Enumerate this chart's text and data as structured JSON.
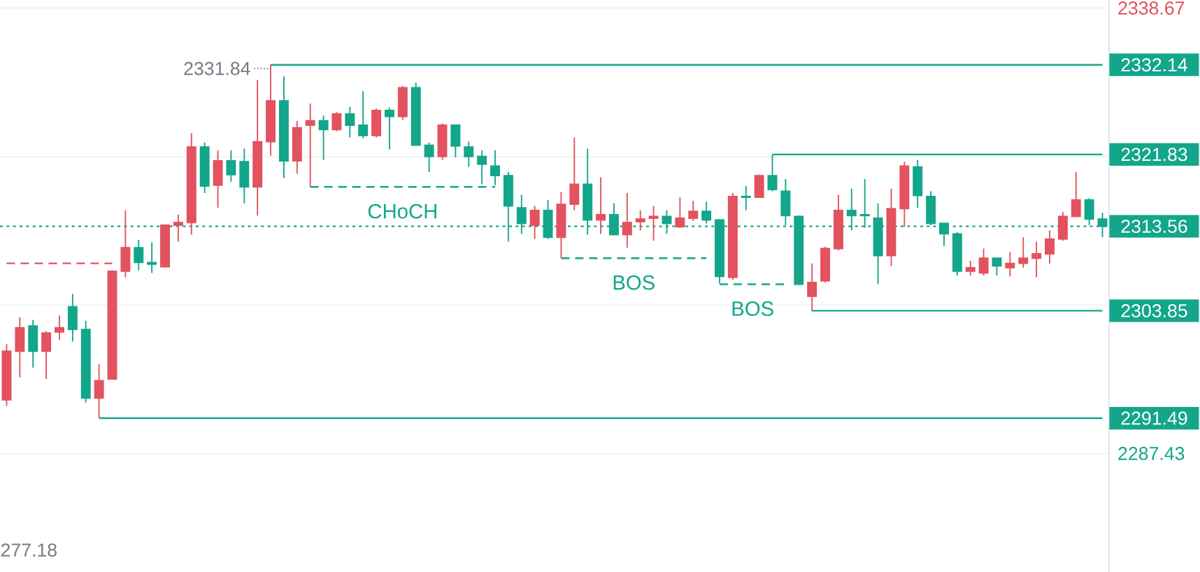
{
  "chart_data": {
    "type": "candlestick",
    "categories": [
      null,
      null,
      null,
      null,
      null,
      null,
      null,
      null,
      null,
      null,
      null,
      null,
      null,
      null,
      null,
      null,
      null,
      null,
      null,
      null,
      null,
      null,
      null,
      null,
      null,
      null,
      null,
      null,
      null,
      null,
      null,
      null,
      null,
      null,
      null,
      null,
      null,
      null,
      null,
      null,
      null,
      null,
      null,
      null,
      null,
      null,
      null,
      null,
      null,
      null,
      null,
      null,
      null,
      null,
      null,
      null,
      null,
      null,
      null,
      null,
      null,
      null,
      null,
      null,
      null,
      null,
      null,
      null,
      null,
      null,
      null,
      null,
      null,
      null,
      null,
      null,
      null,
      null,
      null,
      null,
      null,
      null,
      null,
      null
    ],
    "ohlc": [
      [
        2293.6,
        2300.0,
        2292.9,
        2299.2
      ],
      [
        2299.2,
        2303.1,
        2296.2,
        2301.9
      ],
      [
        2302.1,
        2302.8,
        2297.3,
        2299.2
      ],
      [
        2299.2,
        2301.5,
        2296.0,
        2301.3
      ],
      [
        2301.4,
        2303.3,
        2300.5,
        2301.9
      ],
      [
        2304.3,
        2305.8,
        2300.3,
        2301.7
      ],
      [
        2301.7,
        2302.7,
        2293.3,
        2293.8
      ],
      [
        2293.8,
        2297.7,
        2291.49,
        2295.8
      ],
      [
        2296.0,
        2308.5,
        2296.0,
        2308.4
      ],
      [
        2308.4,
        2315.4,
        2307.7,
        2311.1
      ],
      [
        2311.1,
        2312.0,
        2308.5,
        2309.4
      ],
      [
        2309.4,
        2311.7,
        2308.2,
        2309.2
      ],
      [
        2308.9,
        2313.8,
        2308.8,
        2313.7
      ],
      [
        2313.7,
        2314.9,
        2311.8,
        2314.0
      ],
      [
        2314.0,
        2324.3,
        2312.6,
        2322.7
      ],
      [
        2322.7,
        2323.2,
        2317.4,
        2318.2
      ],
      [
        2318.3,
        2322.3,
        2315.7,
        2321.1
      ],
      [
        2321.1,
        2322.3,
        2318.7,
        2319.5
      ],
      [
        2321.0,
        2322.5,
        2316.2,
        2318.1
      ],
      [
        2318.1,
        2330.4,
        2314.8,
        2323.3
      ],
      [
        2323.3,
        2332.14,
        2321.7,
        2328.0
      ],
      [
        2328.0,
        2330.8,
        2319.1,
        2321.1
      ],
      [
        2321.1,
        2325.7,
        2319.6,
        2324.9
      ],
      [
        2325.2,
        2327.7,
        2318.1,
        2325.7
      ],
      [
        2325.7,
        2326.3,
        2321.2,
        2324.7
      ],
      [
        2324.7,
        2326.7,
        2324.5,
        2326.5
      ],
      [
        2326.5,
        2327.3,
        2323.8,
        2325.2
      ],
      [
        2325.2,
        2329.1,
        2323.7,
        2324.0
      ],
      [
        2324.0,
        2327.1,
        2323.8,
        2326.9
      ],
      [
        2326.9,
        2327.2,
        2322.4,
        2326.2
      ],
      [
        2326.2,
        2329.7,
        2325.8,
        2329.5
      ],
      [
        2329.5,
        2330.1,
        2322.8,
        2322.9
      ],
      [
        2322.9,
        2323.2,
        2319.8,
        2321.6
      ],
      [
        2321.6,
        2325.4,
        2321.2,
        2325.2
      ],
      [
        2325.2,
        2325.3,
        2321.5,
        2322.8
      ],
      [
        2322.7,
        2323.3,
        2320.4,
        2321.6
      ],
      [
        2321.6,
        2322.3,
        2318.4,
        2320.7
      ],
      [
        2320.5,
        2322.3,
        2318.3,
        2319.4
      ],
      [
        2319.4,
        2319.8,
        2311.8,
        2315.9
      ],
      [
        2315.7,
        2317.2,
        2312.7,
        2313.9
      ],
      [
        2313.7,
        2315.9,
        2312.1,
        2315.4
      ],
      [
        2315.4,
        2316.6,
        2312.1,
        2312.3
      ],
      [
        2312.3,
        2317.5,
        2309.9,
        2316.1
      ],
      [
        2316.1,
        2323.8,
        2315.4,
        2318.4
      ],
      [
        2318.4,
        2322.5,
        2312.6,
        2314.3
      ],
      [
        2314.3,
        2319.2,
        2312.7,
        2314.9
      ],
      [
        2314.9,
        2316.2,
        2312.6,
        2312.6
      ],
      [
        2312.6,
        2317.4,
        2311.1,
        2314.0
      ],
      [
        2314.1,
        2315.4,
        2313.1,
        2314.4
      ],
      [
        2314.5,
        2315.9,
        2311.9,
        2314.7
      ],
      [
        2314.7,
        2315.4,
        2312.7,
        2313.9
      ],
      [
        2313.5,
        2316.9,
        2313.4,
        2314.5
      ],
      [
        2314.5,
        2316.5,
        2314.2,
        2315.3
      ],
      [
        2315.3,
        2316.4,
        2313.9,
        2314.3
      ],
      [
        2314.3,
        2314.4,
        2307.0,
        2307.8
      ],
      [
        2307.7,
        2317.4,
        2307.4,
        2317.0
      ],
      [
        2317.0,
        2318.2,
        2315.4,
        2316.9
      ],
      [
        2316.9,
        2319.5,
        2316.9,
        2319.4
      ],
      [
        2319.4,
        2321.83,
        2317.6,
        2317.8
      ],
      [
        2317.6,
        2319.0,
        2313.7,
        2314.8
      ],
      [
        2314.7,
        2314.8,
        2306.8,
        2306.9
      ],
      [
        2305.5,
        2309.3,
        2303.85,
        2307.1
      ],
      [
        2307.3,
        2311.2,
        2307.1,
        2311.0
      ],
      [
        2311.0,
        2317.2,
        2310.8,
        2315.4
      ],
      [
        2315.4,
        2317.9,
        2313.1,
        2314.8
      ],
      [
        2314.9,
        2319.0,
        2313.4,
        2314.8
      ],
      [
        2314.5,
        2316.2,
        2306.9,
        2310.2
      ],
      [
        2310.2,
        2317.9,
        2309.0,
        2315.6
      ],
      [
        2315.6,
        2321.0,
        2313.5,
        2320.5
      ],
      [
        2320.4,
        2321.2,
        2315.7,
        2317.1
      ],
      [
        2317.0,
        2317.6,
        2313.7,
        2313.9
      ],
      [
        2313.9,
        2313.9,
        2311.3,
        2312.7
      ],
      [
        2312.7,
        2312.9,
        2307.9,
        2308.4
      ],
      [
        2308.4,
        2309.6,
        2307.9,
        2308.8
      ],
      [
        2308.2,
        2311.0,
        2307.9,
        2309.9
      ],
      [
        2309.9,
        2309.9,
        2307.9,
        2309.0
      ],
      [
        2308.8,
        2310.6,
        2307.8,
        2309.3
      ],
      [
        2309.3,
        2312.3,
        2308.8,
        2309.9
      ],
      [
        2309.9,
        2311.8,
        2307.7,
        2310.4
      ],
      [
        2310.4,
        2313.1,
        2309.3,
        2312.1
      ],
      [
        2312.1,
        2315.2,
        2311.9,
        2314.7
      ],
      [
        2314.7,
        2319.8,
        2314.7,
        2316.6
      ],
      [
        2316.6,
        2316.8,
        2313.7,
        2314.4
      ],
      [
        2314.4,
        2315.1,
        2312.3,
        2313.56
      ]
    ],
    "colors": [
      "#e2525f",
      "#e2525f",
      "#13a68b",
      "#e2525f",
      "#e2525f",
      "#13a68b",
      "#13a68b",
      "#e2525f",
      "#e2525f",
      "#e2525f",
      "#13a68b",
      "#13a68b",
      "#e2525f",
      "#e2525f",
      "#e2525f",
      "#13a68b",
      "#e2525f",
      "#13a68b",
      "#13a68b",
      "#e2525f",
      "#e2525f",
      "#13a68b",
      "#e2525f",
      "#e2525f",
      "#13a68b",
      "#e2525f",
      "#13a68b",
      "#13a68b",
      "#e2525f",
      "#13a68b",
      "#e2525f",
      "#13a68b",
      "#13a68b",
      "#e2525f",
      "#13a68b",
      "#13a68b",
      "#13a68b",
      "#13a68b",
      "#13a68b",
      "#13a68b",
      "#e2525f",
      "#13a68b",
      "#e2525f",
      "#e2525f",
      "#13a68b",
      "#e2525f",
      "#13a68b",
      "#e2525f",
      "#e2525f",
      "#e2525f",
      "#13a68b",
      "#e2525f",
      "#e2525f",
      "#13a68b",
      "#13a68b",
      "#e2525f",
      "#13a68b",
      "#e2525f",
      "#13a68b",
      "#13a68b",
      "#13a68b",
      "#e2525f",
      "#e2525f",
      "#e2525f",
      "#13a68b",
      "#13a68b",
      "#13a68b",
      "#e2525f",
      "#e2525f",
      "#13a68b",
      "#13a68b",
      "#13a68b",
      "#13a68b",
      "#e2525f",
      "#e2525f",
      "#13a68b",
      "#e2525f",
      "#e2525f",
      "#e2525f",
      "#e2525f",
      "#e2525f",
      "#e2525f",
      "#13a68b",
      "#13a68b"
    ],
    "series": [
      {
        "type": "line",
        "name": "2332.14",
        "color": "#13a68b",
        "values": [
          null,
          null,
          null,
          null,
          null,
          null,
          null,
          null,
          null,
          null,
          null,
          null,
          null,
          null,
          null,
          null,
          null,
          null,
          null,
          null,
          2332.14,
          2332.14,
          2332.14,
          2332.14,
          2332.14,
          2332.14,
          2332.14,
          2332.14,
          2332.14,
          2332.14,
          2332.14,
          2332.14,
          2332.14,
          2332.14,
          2332.14,
          2332.14,
          2332.14,
          2332.14,
          2332.14,
          2332.14,
          2332.14,
          2332.14,
          2332.14,
          2332.14,
          2332.14,
          2332.14,
          2332.14,
          2332.14,
          2332.14,
          2332.14,
          2332.14,
          2332.14,
          2332.14,
          2332.14,
          2332.14,
          2332.14,
          2332.14,
          2332.14,
          2332.14,
          2332.14,
          2332.14,
          2332.14,
          2332.14,
          2332.14,
          2332.14,
          2332.14,
          2332.14,
          2332.14,
          2332.14,
          2332.14,
          2332.14,
          2332.14,
          2332.14,
          2332.14,
          2332.14,
          2332.14,
          2332.14,
          2332.14,
          2332.14,
          2332.14,
          2332.14,
          2332.14,
          2332.14,
          2332.14
        ]
      },
      {
        "type": "line",
        "name": "2321.83",
        "color": "#13a68b",
        "values": [
          null,
          null,
          null,
          null,
          null,
          null,
          null,
          null,
          null,
          null,
          null,
          null,
          null,
          null,
          null,
          null,
          null,
          null,
          null,
          null,
          null,
          null,
          null,
          null,
          null,
          null,
          null,
          null,
          null,
          null,
          null,
          null,
          null,
          null,
          null,
          null,
          null,
          null,
          null,
          null,
          null,
          null,
          null,
          null,
          null,
          null,
          null,
          null,
          null,
          null,
          null,
          null,
          null,
          null,
          null,
          null,
          null,
          null,
          2321.83,
          2321.83,
          2321.83,
          2321.83,
          2321.83,
          2321.83,
          2321.83,
          2321.83,
          2321.83,
          2321.83,
          2321.83,
          2321.83,
          2321.83,
          2321.83,
          2321.83,
          2321.83,
          2321.83,
          2321.83,
          2321.83,
          2321.83,
          2321.83,
          2321.83,
          2321.83,
          2321.83,
          2321.83,
          2321.83
        ]
      },
      {
        "type": "line",
        "name": "2303.85",
        "color": "#13a68b",
        "values": [
          null,
          null,
          null,
          null,
          null,
          null,
          null,
          null,
          null,
          null,
          null,
          null,
          null,
          null,
          null,
          null,
          null,
          null,
          null,
          null,
          null,
          null,
          null,
          null,
          null,
          null,
          null,
          null,
          null,
          null,
          null,
          null,
          null,
          null,
          null,
          null,
          null,
          null,
          null,
          null,
          null,
          null,
          null,
          null,
          null,
          null,
          null,
          null,
          null,
          null,
          null,
          null,
          null,
          null,
          null,
          null,
          null,
          null,
          null,
          null,
          null,
          2303.85,
          2303.85,
          2303.85,
          2303.85,
          2303.85,
          2303.85,
          2303.85,
          2303.85,
          2303.85,
          2303.85,
          2303.85,
          2303.85,
          2303.85,
          2303.85,
          2303.85,
          2303.85,
          2303.85,
          2303.85,
          2303.85,
          2303.85,
          2303.85,
          2303.85,
          2303.85
        ]
      },
      {
        "type": "line",
        "name": "2291.49",
        "color": "#13a68b",
        "values": [
          null,
          null,
          null,
          null,
          null,
          null,
          null,
          2291.49,
          2291.49,
          2291.49,
          2291.49,
          2291.49,
          2291.49,
          2291.49,
          2291.49,
          2291.49,
          2291.49,
          2291.49,
          2291.49,
          2291.49,
          2291.49,
          2291.49,
          2291.49,
          2291.49,
          2291.49,
          2291.49,
          2291.49,
          2291.49,
          2291.49,
          2291.49,
          2291.49,
          2291.49,
          2291.49,
          2291.49,
          2291.49,
          2291.49,
          2291.49,
          2291.49,
          2291.49,
          2291.49,
          2291.49,
          2291.49,
          2291.49,
          2291.49,
          2291.49,
          2291.49,
          2291.49,
          2291.49,
          2291.49,
          2291.49,
          2291.49,
          2291.49,
          2291.49,
          2291.49,
          2291.49,
          2291.49,
          2291.49,
          2291.49,
          2291.49,
          2291.49,
          2291.49,
          2291.49,
          2291.49,
          2291.49,
          2291.49,
          2291.49,
          2291.49,
          2291.49,
          2291.49,
          2291.49,
          2291.49,
          2291.49,
          2291.49,
          2291.49,
          2291.49,
          2291.49,
          2291.49,
          2291.49,
          2291.49,
          2291.49,
          2291.49,
          2291.49,
          2291.49,
          2291.49
        ]
      },
      {
        "type": "line",
        "color": "#e2525f",
        "line_style": "dashed",
        "values": [
          2309.3,
          2309.3,
          2309.3,
          2309.3,
          2309.3,
          2309.3,
          2309.3,
          2309.3,
          2309.3,
          null,
          null,
          null,
          null,
          null,
          null,
          null,
          null,
          null,
          null,
          null,
          null,
          null,
          null,
          null,
          null,
          null,
          null,
          null,
          null,
          null,
          null,
          null,
          null,
          null,
          null,
          null,
          null,
          null,
          null,
          null,
          null,
          null,
          null,
          null,
          null,
          null,
          null,
          null,
          null,
          null,
          null,
          null,
          null,
          null,
          null,
          null,
          null,
          null,
          null,
          null,
          null,
          null,
          null,
          null,
          null,
          null,
          null,
          null,
          null,
          null,
          null,
          null,
          null,
          null,
          null,
          null,
          null,
          null,
          null,
          null,
          null,
          null,
          null,
          null
        ]
      },
      {
        "type": "line",
        "color": "#13a68b",
        "line_style": "dashed",
        "values": [
          null,
          null,
          null,
          null,
          null,
          null,
          null,
          null,
          null,
          null,
          null,
          null,
          null,
          null,
          null,
          null,
          null,
          null,
          null,
          null,
          null,
          null,
          null,
          2318.1,
          2318.1,
          2318.1,
          2318.1,
          2318.1,
          2318.1,
          2318.1,
          2318.1,
          2318.1,
          2318.1,
          2318.1,
          2318.1,
          2318.1,
          2318.1,
          2318.1,
          null,
          null,
          null,
          null,
          null,
          null,
          null,
          null,
          null,
          null,
          null,
          null,
          null,
          null,
          null,
          null,
          null,
          null,
          null,
          null,
          null,
          null,
          null,
          null,
          null,
          null,
          null,
          null,
          null,
          null,
          null,
          null,
          null,
          null,
          null,
          null,
          null,
          null,
          null,
          null,
          null,
          null,
          null,
          null,
          null,
          null
        ]
      },
      {
        "type": "line",
        "color": "#13a68b",
        "line_style": "dashed",
        "values": [
          null,
          null,
          null,
          null,
          null,
          null,
          null,
          null,
          null,
          null,
          null,
          null,
          null,
          null,
          null,
          null,
          null,
          null,
          null,
          null,
          null,
          null,
          null,
          null,
          null,
          null,
          null,
          null,
          null,
          null,
          null,
          null,
          null,
          null,
          null,
          null,
          null,
          null,
          null,
          null,
          null,
          null,
          2309.9,
          2309.9,
          2309.9,
          2309.9,
          2309.9,
          2309.9,
          2309.9,
          2309.9,
          2309.9,
          2309.9,
          2309.9,
          2309.9,
          null,
          null,
          null,
          null,
          null,
          null,
          null,
          null,
          null,
          null,
          null,
          null,
          null,
          null,
          null,
          null,
          null,
          null,
          null,
          null,
          null,
          null,
          null,
          null,
          null,
          null,
          null,
          null,
          null,
          null
        ]
      },
      {
        "type": "line",
        "color": "#13a68b",
        "line_style": "dashed",
        "values": [
          null,
          null,
          null,
          null,
          null,
          null,
          null,
          null,
          null,
          null,
          null,
          null,
          null,
          null,
          null,
          null,
          null,
          null,
          null,
          null,
          null,
          null,
          null,
          null,
          null,
          null,
          null,
          null,
          null,
          null,
          null,
          null,
          null,
          null,
          null,
          null,
          null,
          null,
          null,
          null,
          null,
          null,
          null,
          null,
          null,
          null,
          null,
          null,
          null,
          null,
          null,
          null,
          null,
          null,
          2306.9,
          2306.9,
          2306.9,
          2306.9,
          2306.9,
          2306.9,
          null,
          null,
          null,
          null,
          null,
          null,
          null,
          null,
          null,
          null,
          null,
          null,
          null,
          null,
          null,
          null,
          null,
          null,
          null,
          null,
          null,
          null,
          null,
          null
        ]
      }
    ],
    "ref_lines": [
      {
        "axis": "y",
        "value": 2313.56,
        "label": "2313.56",
        "color": "#13a68b",
        "line_style": "dotted"
      }
    ],
    "annotations": [
      "2331.84",
      {
        "text": "CHoCH",
        "y": 2318.1
      },
      {
        "text": "BOS",
        "y": 2309.9
      },
      {
        "text": "BOS",
        "y": 2306.9
      },
      "277.18"
    ],
    "ylim": [
      2273.8,
      2339.6
    ],
    "yticks": [
      2287.43,
      {
        "value": 2304.51,
        "label": null
      },
      {
        "value": 2321.59,
        "label": null
      },
      2338.67
    ],
    "tick_labels": "y",
    "grid": "y"
  }
}
